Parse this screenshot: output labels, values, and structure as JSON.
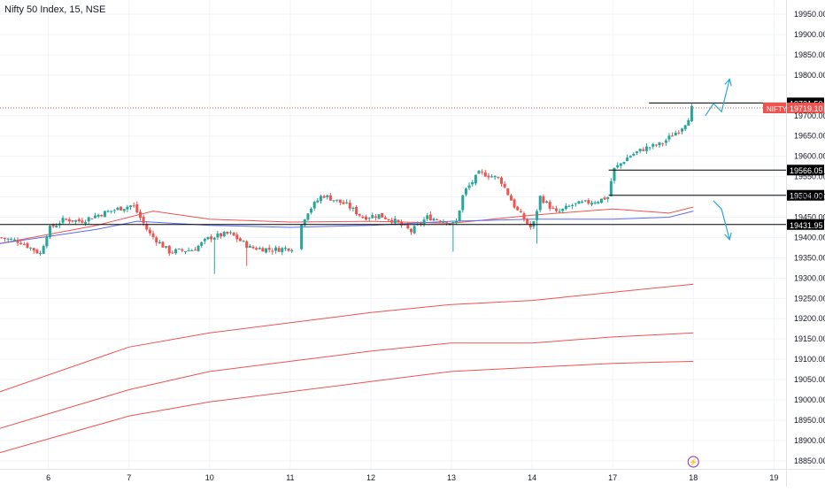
{
  "colors": {
    "up": "#26a69a",
    "down": "#ef5350",
    "ma_red": "#ef5350",
    "ma_blue": "#5b6cf0",
    "grid": "#f0f3fa",
    "level_line": "#000000",
    "price_line": "#ef5350",
    "arrow": "#2ba7d8",
    "axis_text": "#131722",
    "price_tag": "#ef5350"
  },
  "chart_data": {
    "type": "candlestick",
    "title": "Nifty 50 Index, 15, NSE",
    "y_ticks": [
      "18850.00",
      "18900.00",
      "18950.00",
      "19000.00",
      "19050.00",
      "19100.00",
      "19150.00",
      "19200.00",
      "19250.00",
      "19300.00",
      "19350.00",
      "19400.00",
      "19450.00",
      "19500.00",
      "19550.00",
      "19600.00",
      "19650.00",
      "19700.00",
      "19800.00",
      "19850.00",
      "19900.00",
      "19950.00"
    ],
    "ylim": [
      18830,
      19985
    ],
    "x_ticks": [
      {
        "label": "6",
        "x": 0.6
      },
      {
        "label": "7",
        "x": 1.6
      },
      {
        "label": "10",
        "x": 2.6
      },
      {
        "label": "11",
        "x": 3.6
      },
      {
        "label": "12",
        "x": 4.6
      },
      {
        "label": "13",
        "x": 5.6
      },
      {
        "label": "14",
        "x": 6.6
      },
      {
        "label": "17",
        "x": 7.6
      },
      {
        "label": "18",
        "x": 8.6
      },
      {
        "label": "19",
        "x": 9.6
      }
    ],
    "xlim": [
      0,
      9.75
    ],
    "anchors": [
      {
        "x": 0.0,
        "c": 19400
      },
      {
        "x": 0.25,
        "c": 19390
      },
      {
        "x": 0.5,
        "c": 19360
      },
      {
        "x": 0.6,
        "c": 19420
      },
      {
        "x": 0.8,
        "c": 19445
      },
      {
        "x": 1.0,
        "c": 19440
      },
      {
        "x": 1.2,
        "c": 19455
      },
      {
        "x": 1.45,
        "c": 19470
      },
      {
        "x": 1.65,
        "c": 19480
      },
      {
        "x": 1.85,
        "c": 19410
      },
      {
        "x": 2.1,
        "c": 19365
      },
      {
        "x": 2.4,
        "c": 19370
      },
      {
        "x": 2.6,
        "c": 19400
      },
      {
        "x": 2.85,
        "c": 19410
      },
      {
        "x": 3.1,
        "c": 19375
      },
      {
        "x": 3.4,
        "c": 19370
      },
      {
        "x": 3.62,
        "c": 19375
      },
      {
        "x": 3.8,
        "c": 19460
      },
      {
        "x": 4.0,
        "c": 19505
      },
      {
        "x": 4.3,
        "c": 19480
      },
      {
        "x": 4.5,
        "c": 19450
      },
      {
        "x": 4.7,
        "c": 19455
      },
      {
        "x": 4.9,
        "c": 19440
      },
      {
        "x": 5.1,
        "c": 19415
      },
      {
        "x": 5.3,
        "c": 19450
      },
      {
        "x": 5.55,
        "c": 19440
      },
      {
        "x": 5.65,
        "c": 19430
      },
      {
        "x": 5.75,
        "c": 19510
      },
      {
        "x": 5.95,
        "c": 19560
      },
      {
        "x": 6.2,
        "c": 19545
      },
      {
        "x": 6.4,
        "c": 19470
      },
      {
        "x": 6.6,
        "c": 19420
      },
      {
        "x": 6.7,
        "c": 19500
      },
      {
        "x": 6.9,
        "c": 19460
      },
      {
        "x": 7.1,
        "c": 19480
      },
      {
        "x": 7.4,
        "c": 19490
      },
      {
        "x": 7.55,
        "c": 19500
      },
      {
        "x": 7.6,
        "c": 19565
      },
      {
        "x": 7.8,
        "c": 19600
      },
      {
        "x": 8.0,
        "c": 19620
      },
      {
        "x": 8.2,
        "c": 19630
      },
      {
        "x": 8.45,
        "c": 19670
      },
      {
        "x": 8.53,
        "c": 19690
      },
      {
        "x": 8.6,
        "c": 19730
      }
    ],
    "down_spikes": [
      {
        "x": 2.65,
        "low": 19310
      },
      {
        "x": 3.05,
        "low": 19330
      },
      {
        "x": 5.62,
        "low": 19365
      },
      {
        "x": 6.65,
        "low": 19385
      }
    ],
    "ma_red": [
      [
        0.0,
        19385
      ],
      [
        1.2,
        19430
      ],
      [
        1.9,
        19465
      ],
      [
        2.6,
        19445
      ],
      [
        3.6,
        19438
      ],
      [
        4.6,
        19440
      ],
      [
        5.6,
        19435
      ],
      [
        6.6,
        19455
      ],
      [
        7.6,
        19470
      ],
      [
        8.3,
        19460
      ],
      [
        8.6,
        19475
      ]
    ],
    "ma_blue": [
      [
        0.0,
        19385
      ],
      [
        1.2,
        19420
      ],
      [
        1.7,
        19440
      ],
      [
        2.6,
        19430
      ],
      [
        3.6,
        19425
      ],
      [
        4.6,
        19430
      ],
      [
        5.6,
        19440
      ],
      [
        6.6,
        19445
      ],
      [
        7.6,
        19445
      ],
      [
        8.3,
        19450
      ],
      [
        8.6,
        19465
      ]
    ],
    "bands": [
      [
        [
          0.0,
          19020
        ],
        [
          1.6,
          19130
        ],
        [
          2.6,
          19165
        ],
        [
          3.6,
          19190
        ],
        [
          4.6,
          19215
        ],
        [
          5.6,
          19235
        ],
        [
          6.6,
          19245
        ],
        [
          7.6,
          19265
        ],
        [
          8.6,
          19285
        ]
      ],
      [
        [
          0.0,
          18930
        ],
        [
          1.6,
          19025
        ],
        [
          2.6,
          19070
        ],
        [
          3.6,
          19095
        ],
        [
          4.6,
          19120
        ],
        [
          5.6,
          19140
        ],
        [
          6.6,
          19140
        ],
        [
          7.6,
          19155
        ],
        [
          8.6,
          19165
        ]
      ],
      [
        [
          0.0,
          18870
        ],
        [
          1.6,
          18960
        ],
        [
          2.6,
          18995
        ],
        [
          3.6,
          19020
        ],
        [
          4.6,
          19045
        ],
        [
          5.6,
          19070
        ],
        [
          6.6,
          19080
        ],
        [
          7.6,
          19090
        ],
        [
          8.6,
          19095
        ]
      ]
    ],
    "levels": [
      {
        "value": 19731.5,
        "label": "19731.50",
        "x_start": 8.05
      },
      {
        "value": 19566.05,
        "label": "19566.05",
        "x_start": 7.55
      },
      {
        "value": 19504.0,
        "label": "19504.00",
        "x_start": 7.55
      },
      {
        "value": 19431.95,
        "label": "19431.95",
        "x_start": 0.0
      }
    ],
    "current_price": {
      "symbol": "NIFTY",
      "value": "19719.10",
      "y": 19719.1
    },
    "arrow_up": [
      [
        8.75,
        19700
      ],
      [
        8.85,
        19730
      ],
      [
        8.95,
        19710
      ],
      [
        9.05,
        19790
      ]
    ],
    "arrow_down": [
      [
        8.85,
        19490
      ],
      [
        8.95,
        19470
      ],
      [
        9.05,
        19395
      ]
    ]
  }
}
